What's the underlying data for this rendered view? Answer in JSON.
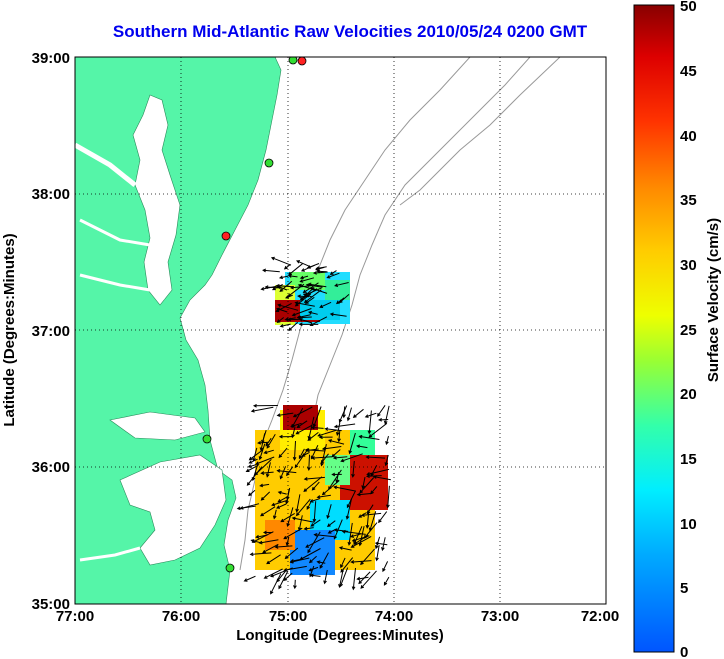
{
  "title": "Southern Mid-Atlantic Raw Velocities 2010/05/24 0200 GMT",
  "x_axis": {
    "label": "Longitude (Degrees:Minutes)",
    "ticks": [
      "77:00",
      "76:00",
      "75:00",
      "74:00",
      "73:00",
      "72:00"
    ],
    "range": [
      -77,
      -72
    ]
  },
  "y_axis": {
    "label": "Latitude (Degrees:Minutes)",
    "ticks": [
      "39:00",
      "38:00",
      "37:00",
      "36:00",
      "35:00"
    ],
    "range": [
      35,
      39
    ]
  },
  "colorbar": {
    "label": "Surface Velocity (cm/s)",
    "ticks": [
      "50",
      "45",
      "40",
      "35",
      "30",
      "25",
      "20",
      "15",
      "10",
      "5",
      "0"
    ],
    "range": [
      0,
      50
    ]
  },
  "colors": {
    "land": "#55f5a8",
    "title": "#0000ee",
    "bathymetry": "#999999",
    "station_active": "#33dd33",
    "station_inactive": "#ff2222"
  },
  "grid": true
}
